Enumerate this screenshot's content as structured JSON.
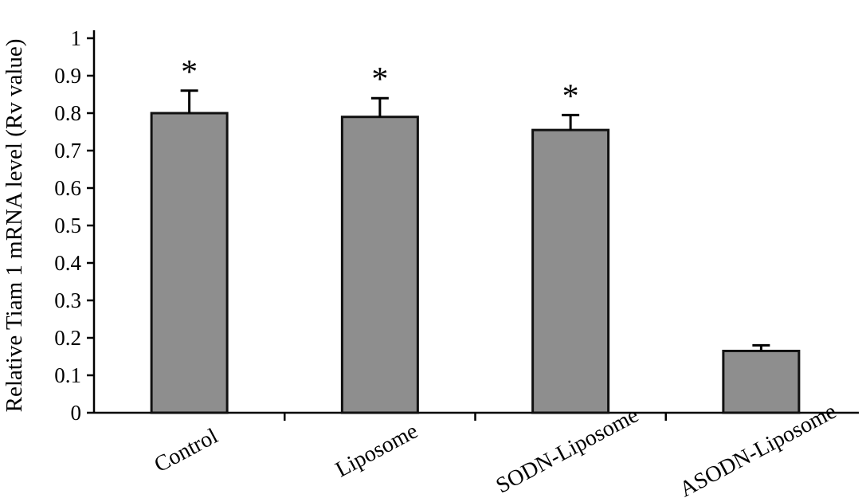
{
  "chart_data": {
    "type": "bar",
    "title": "",
    "xlabel": "",
    "ylabel": "Relative Tiam 1 mRNA level (Rv value)",
    "categories": [
      "Control",
      "Liposome",
      "SODN-Liposome",
      "ASODN-Liposome"
    ],
    "values": [
      0.8,
      0.79,
      0.755,
      0.165
    ],
    "errors": [
      0.06,
      0.05,
      0.04,
      0.015
    ],
    "annotations": [
      "*",
      "*",
      "*",
      ""
    ],
    "ylim": [
      0,
      1
    ],
    "ytick_step": 0.1,
    "ytick_labels": [
      "0",
      "0.1",
      "0.2",
      "0.3",
      "0.4",
      "0.5",
      "0.6",
      "0.7",
      "0.8",
      "0.9",
      "1"
    ],
    "grid": "off",
    "legend": "none",
    "bar_color": "#8e8e8e",
    "bar_border_color": "#111111",
    "axis_color": "#000000"
  }
}
